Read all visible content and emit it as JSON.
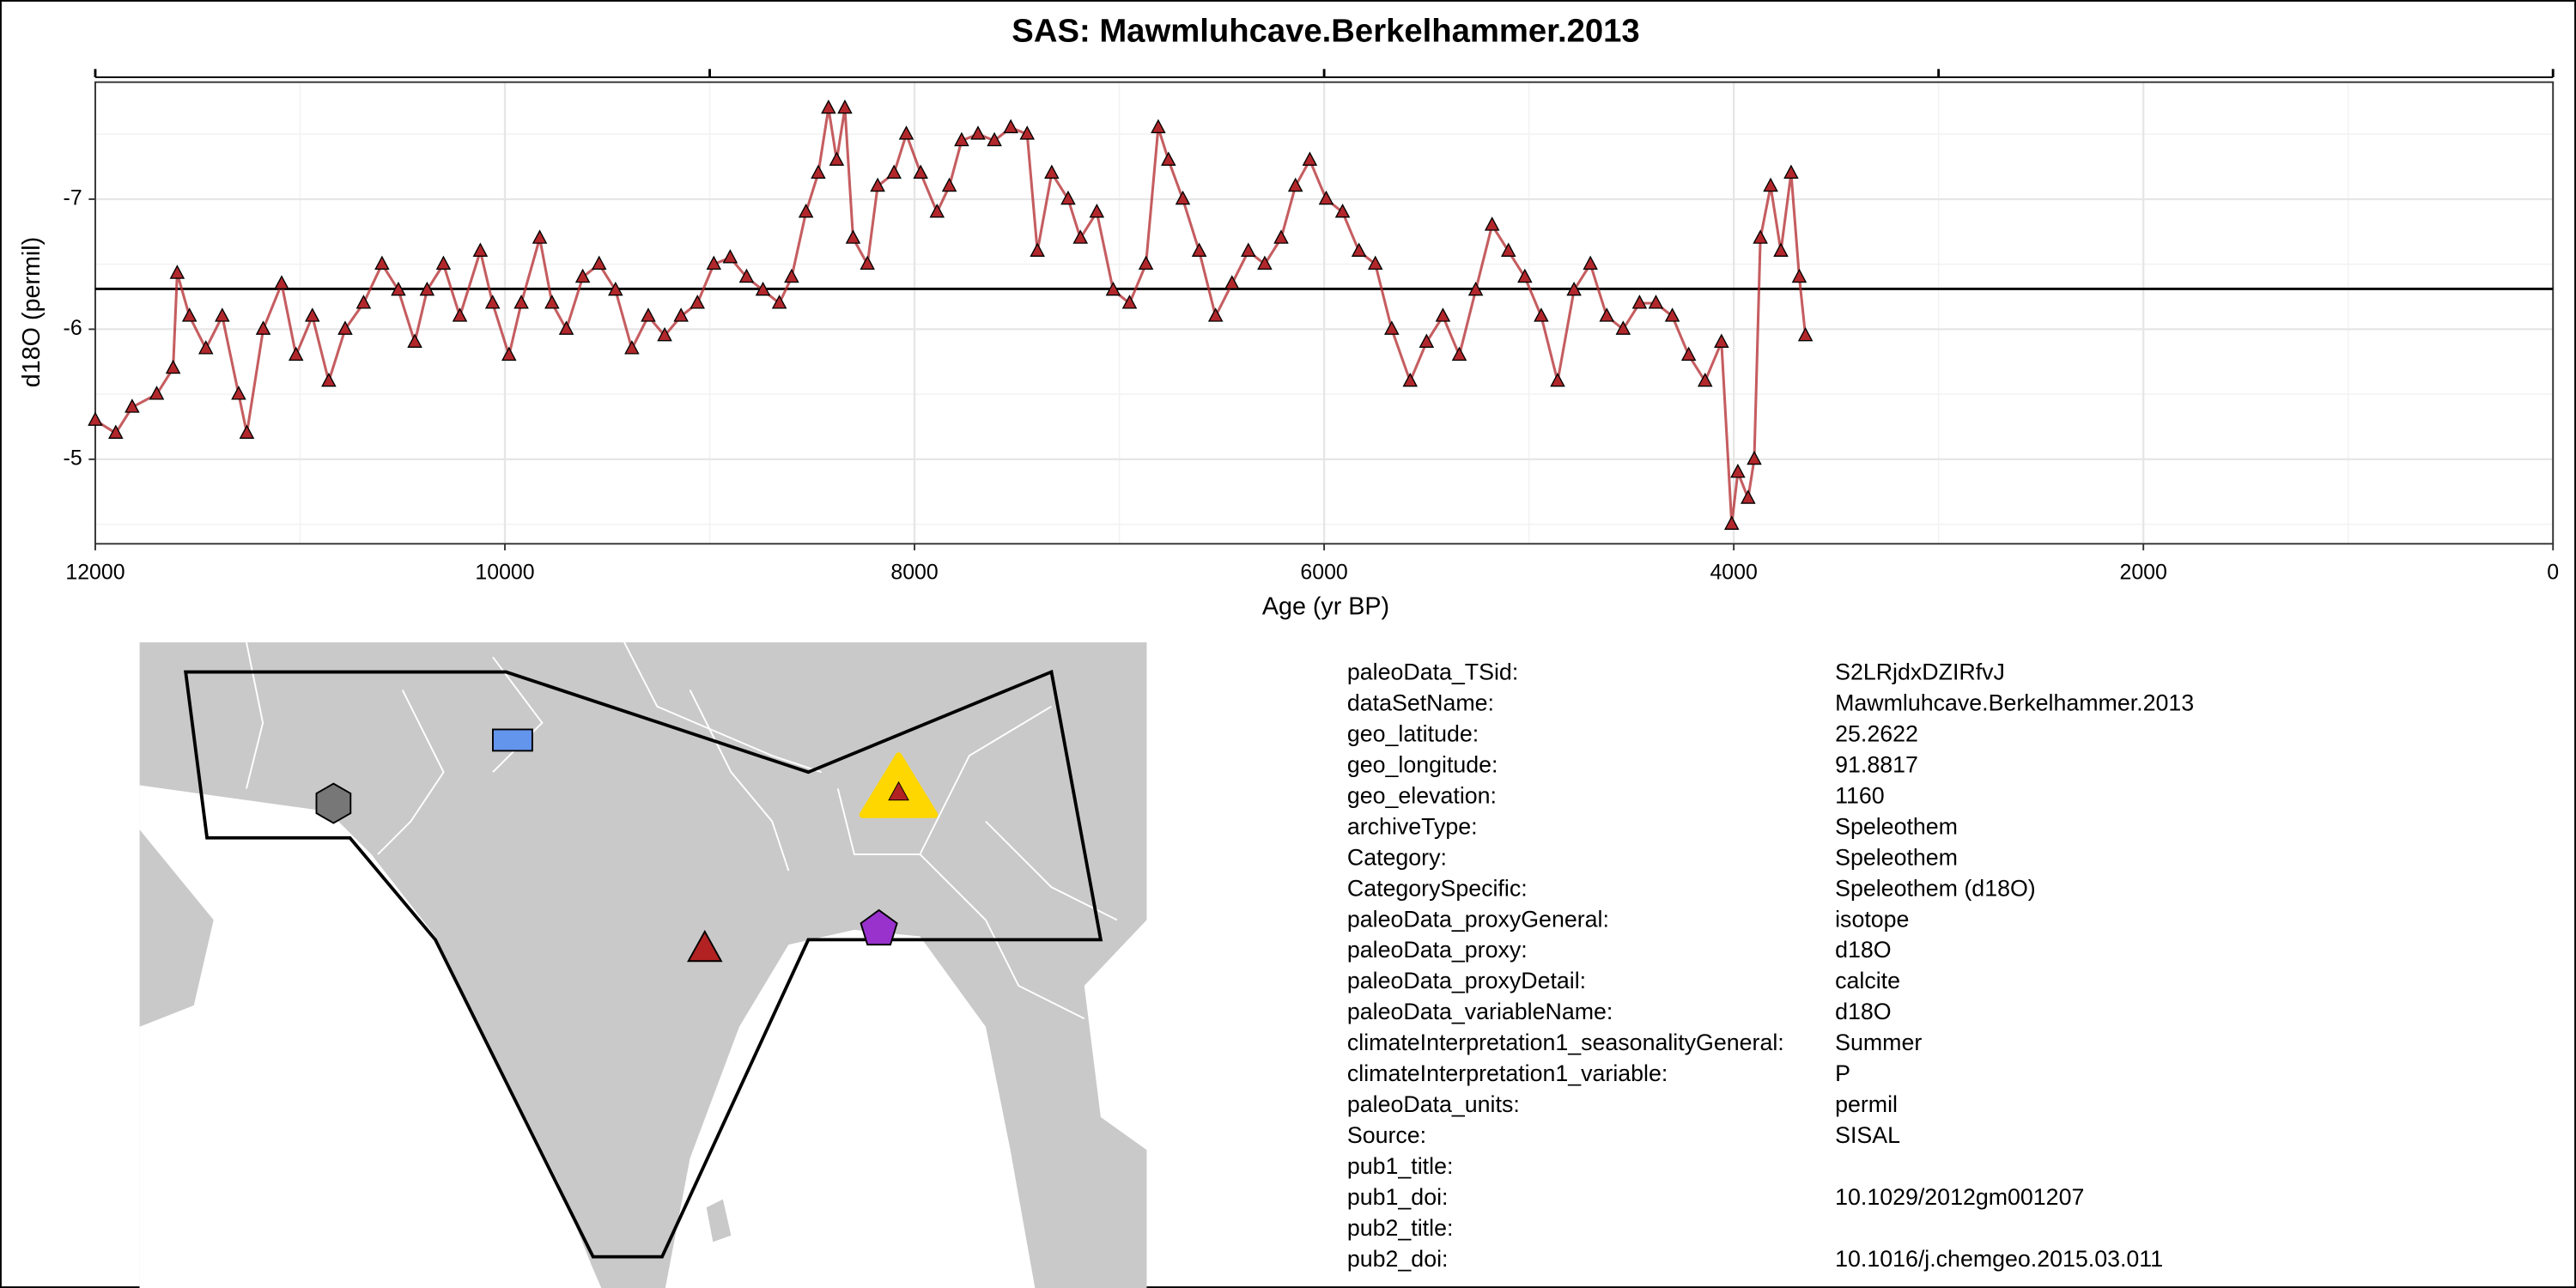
{
  "chart_data": {
    "type": "line",
    "title": "SAS: Mawmluhcave.Berkelhammer.2013",
    "x_label": "Age (yr BP)",
    "y_label": "d18O (permil)",
    "xlim": [
      12000,
      0
    ],
    "xticks": [
      12000,
      10000,
      8000,
      6000,
      4000,
      2000,
      0
    ],
    "x_minor_grid": [
      11000,
      9000,
      7000,
      5000,
      3000,
      1000
    ],
    "top_ticks": [
      12000,
      9000,
      6000,
      3000,
      0
    ],
    "ylim": [
      -4.35,
      -7.9
    ],
    "yticks": [
      -7,
      -6,
      -5
    ],
    "y_minor_grid": [
      -7.5,
      -6.5,
      -5.5,
      -4.5
    ],
    "grid": true,
    "marker": "triangle",
    "hline": {
      "value": -6.31,
      "color": "#000000"
    },
    "series": [
      {
        "color": "#b2272b",
        "x": [
          12000,
          11900,
          11820,
          11700,
          11620,
          11600,
          11540,
          11460,
          11380,
          11300,
          11260,
          11180,
          11090,
          11020,
          10940,
          10860,
          10780,
          10690,
          10600,
          10520,
          10440,
          10380,
          10300,
          10220,
          10120,
          10060,
          9980,
          9920,
          9830,
          9770,
          9700,
          9620,
          9540,
          9460,
          9380,
          9300,
          9220,
          9140,
          9060,
          8980,
          8900,
          8820,
          8740,
          8660,
          8600,
          8530,
          8470,
          8420,
          8380,
          8340,
          8300,
          8230,
          8180,
          8100,
          8040,
          7970,
          7890,
          7830,
          7770,
          7690,
          7610,
          7530,
          7450,
          7400,
          7330,
          7250,
          7190,
          7110,
          7030,
          6950,
          6870,
          6810,
          6760,
          6690,
          6610,
          6530,
          6450,
          6370,
          6290,
          6210,
          6140,
          6070,
          5990,
          5910,
          5830,
          5750,
          5670,
          5580,
          5500,
          5420,
          5340,
          5260,
          5180,
          5100,
          5020,
          4940,
          4860,
          4780,
          4700,
          4620,
          4540,
          4460,
          4380,
          4300,
          4220,
          4140,
          4060,
          4010,
          3980,
          3930,
          3900,
          3870,
          3820,
          3770,
          3720,
          3680,
          3650
        ],
        "values": [
          -5.3,
          -5.2,
          -5.4,
          -5.5,
          -5.7,
          -6.43,
          -6.1,
          -5.85,
          -6.1,
          -5.5,
          -5.2,
          -6.0,
          -6.35,
          -5.8,
          -6.1,
          -5.6,
          -6.0,
          -6.2,
          -6.5,
          -6.3,
          -5.9,
          -6.3,
          -6.5,
          -6.1,
          -6.6,
          -6.2,
          -5.8,
          -6.2,
          -6.7,
          -6.2,
          -6.0,
          -6.4,
          -6.5,
          -6.3,
          -5.85,
          -6.1,
          -5.95,
          -6.1,
          -6.2,
          -6.5,
          -6.55,
          -6.4,
          -6.3,
          -6.2,
          -6.4,
          -6.9,
          -7.2,
          -7.7,
          -7.3,
          -7.7,
          -6.7,
          -6.5,
          -7.1,
          -7.2,
          -7.5,
          -7.2,
          -6.9,
          -7.1,
          -7.45,
          -7.5,
          -7.45,
          -7.55,
          -7.5,
          -6.6,
          -7.2,
          -7.0,
          -6.7,
          -6.9,
          -6.3,
          -6.2,
          -6.5,
          -7.55,
          -7.3,
          -7.0,
          -6.6,
          -6.1,
          -6.35,
          -6.6,
          -6.5,
          -6.7,
          -7.1,
          -7.3,
          -7.0,
          -6.9,
          -6.6,
          -6.5,
          -6.0,
          -5.6,
          -5.9,
          -6.1,
          -5.8,
          -6.3,
          -6.8,
          -6.6,
          -6.4,
          -6.1,
          -5.6,
          -6.3,
          -6.5,
          -6.1,
          -6.0,
          -6.2,
          -6.2,
          -6.1,
          -5.8,
          -5.6,
          -5.9,
          -4.5,
          -4.9,
          -4.7,
          -5.0,
          -6.7,
          -7.1,
          -6.6,
          -7.2,
          -6.4,
          -5.95
        ]
      }
    ]
  },
  "metadata": {
    "rows": [
      [
        "paleoData_TSid:",
        "S2LRjdxDZIRfvJ"
      ],
      [
        "dataSetName:",
        "Mawmluhcave.Berkelhammer.2013"
      ],
      [
        "geo_latitude:",
        "25.2622"
      ],
      [
        "geo_longitude:",
        "91.8817"
      ],
      [
        "geo_elevation:",
        "1160"
      ],
      [
        "archiveType:",
        "Speleothem"
      ],
      [
        "Category:",
        "Speleothem"
      ],
      [
        "CategorySpecific:",
        "Speleothem (d18O)"
      ],
      [
        "paleoData_proxyGeneral:",
        "isotope"
      ],
      [
        "paleoData_proxy:",
        "d18O"
      ],
      [
        "paleoData_proxyDetail:",
        "calcite"
      ],
      [
        "paleoData_variableName:",
        "d18O"
      ],
      [
        "climateInterpretation1_seasonalityGeneral:",
        "Summer"
      ],
      [
        "climateInterpretation1_variable:",
        "P"
      ],
      [
        "paleoData_units:",
        "permil"
      ],
      [
        "Source:",
        "SISAL"
      ],
      [
        "pub1_title:"
      ],
      [
        "pub1_doi:",
        "10.1029/2012gm001207"
      ],
      [
        "pub2_title:"
      ],
      [
        "pub2_doi:",
        "10.1016/j.chemgeo.2015.03.011"
      ]
    ]
  }
}
